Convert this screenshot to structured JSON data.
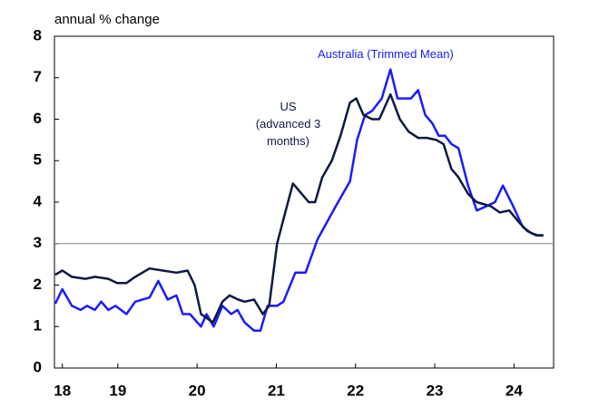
{
  "chart_data": {
    "type": "line",
    "y_label": "annual % change",
    "xlim": [
      18.7,
      25.0
    ],
    "xticks": [
      {
        "value": 18.8,
        "label": "18"
      },
      {
        "value": 19.5,
        "label": "19"
      },
      {
        "value": 20.5,
        "label": "20"
      },
      {
        "value": 21.5,
        "label": "21"
      },
      {
        "value": 22.5,
        "label": "22"
      },
      {
        "value": 23.5,
        "label": "23"
      },
      {
        "value": 24.5,
        "label": "24"
      }
    ],
    "ylim": [
      0,
      8
    ],
    "yticks": [
      0,
      1,
      2,
      3,
      4,
      5,
      6,
      7,
      8
    ],
    "hline": 3,
    "series": [
      {
        "name": "Australia (Trimmed Mean)",
        "color": "#1a1aff",
        "x": [
          18.71,
          18.8,
          18.92,
          19.03,
          19.11,
          19.21,
          19.29,
          19.38,
          19.47,
          19.61,
          19.72,
          19.9,
          20.01,
          20.13,
          20.24,
          20.32,
          20.41,
          20.55,
          20.62,
          20.71,
          20.82,
          20.93,
          21.01,
          21.1,
          21.22,
          21.3,
          21.39,
          21.51,
          21.59,
          21.74,
          21.87,
          22.02,
          22.25,
          22.43,
          22.52,
          22.62,
          22.71,
          22.83,
          22.94,
          23.03,
          23.2,
          23.29,
          23.38,
          23.47,
          23.55,
          23.63,
          23.71,
          23.8,
          23.92,
          24.03,
          24.15,
          24.26,
          24.36,
          24.49,
          24.61,
          24.72,
          24.8,
          24.87
        ],
        "values": [
          1.55,
          1.9,
          1.5,
          1.4,
          1.5,
          1.4,
          1.6,
          1.4,
          1.5,
          1.3,
          1.6,
          1.7,
          2.1,
          1.65,
          1.75,
          1.3,
          1.3,
          1.0,
          1.3,
          1.0,
          1.5,
          1.3,
          1.4,
          1.1,
          0.9,
          0.9,
          1.5,
          1.5,
          1.6,
          2.3,
          2.3,
          3.1,
          3.9,
          4.5,
          5.5,
          6.1,
          6.2,
          6.5,
          7.2,
          6.5,
          6.5,
          6.7,
          6.1,
          5.9,
          5.6,
          5.6,
          5.4,
          5.3,
          4.4,
          3.8,
          3.9,
          4.0,
          4.4,
          3.9,
          3.4,
          3.25,
          3.2,
          3.2
        ]
      },
      {
        "name": "US\n(advanced 3\nmonths)",
        "color": "#0d1a40",
        "x": [
          18.71,
          18.8,
          18.92,
          19.09,
          19.21,
          19.38,
          19.49,
          19.61,
          19.72,
          19.9,
          20.07,
          20.24,
          20.38,
          20.47,
          20.55,
          20.7,
          20.82,
          20.91,
          21.02,
          21.1,
          21.22,
          21.33,
          21.41,
          21.51,
          21.62,
          21.71,
          21.82,
          21.91,
          21.99,
          22.08,
          22.2,
          22.31,
          22.43,
          22.51,
          22.6,
          22.71,
          22.8,
          22.94,
          23.06,
          23.17,
          23.29,
          23.4,
          23.52,
          23.61,
          23.71,
          23.8,
          23.92,
          24.03,
          24.21,
          24.32,
          24.44,
          24.57,
          24.67,
          24.78,
          24.87
        ],
        "values": [
          2.25,
          2.35,
          2.2,
          2.15,
          2.2,
          2.15,
          2.05,
          2.05,
          2.2,
          2.4,
          2.35,
          2.3,
          2.35,
          2.0,
          1.3,
          1.1,
          1.6,
          1.75,
          1.65,
          1.6,
          1.65,
          1.3,
          1.5,
          3.0,
          3.8,
          4.45,
          4.2,
          4.0,
          4.0,
          4.6,
          5.0,
          5.6,
          6.4,
          6.5,
          6.1,
          6.0,
          6.0,
          6.6,
          6.0,
          5.7,
          5.55,
          5.55,
          5.5,
          5.4,
          4.8,
          4.6,
          4.2,
          4.0,
          3.9,
          3.75,
          3.8,
          3.5,
          3.3,
          3.2,
          3.2
        ]
      }
    ]
  }
}
